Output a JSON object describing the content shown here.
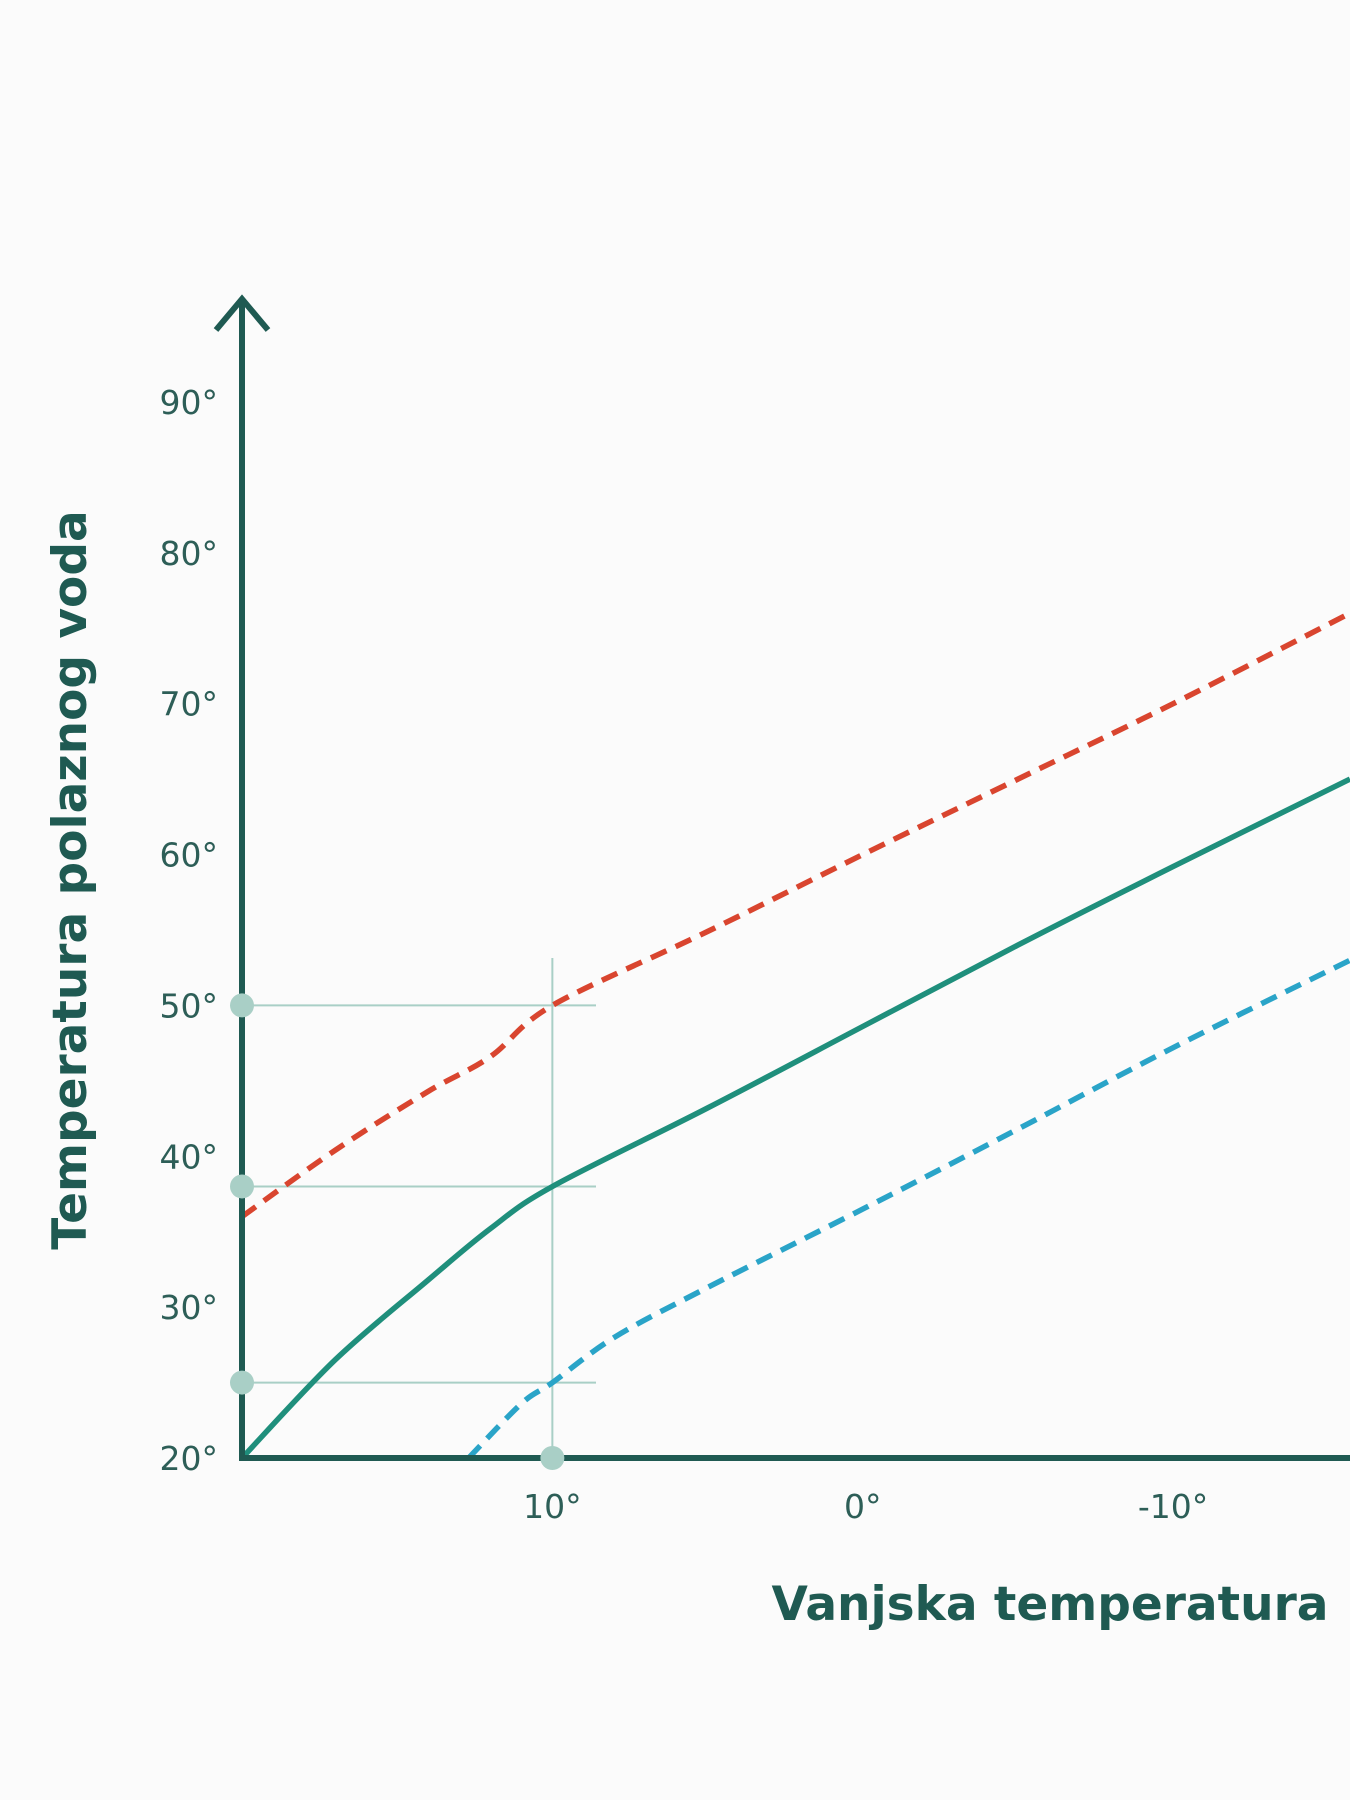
{
  "chart_data": {
    "type": "line",
    "xlabel": "Vanjska temperatura",
    "ylabel": "Temperatura polaznog voda",
    "x_tick_labels": [
      "10°",
      "0°",
      "-10°"
    ],
    "x_ticks": [
      10,
      0,
      -10
    ],
    "y_tick_labels": [
      "20°",
      "30°",
      "40°",
      "50°",
      "60°",
      "70°",
      "80°",
      "90°"
    ],
    "y_ticks": [
      20,
      30,
      40,
      50,
      60,
      70,
      80,
      90
    ],
    "x_axis_reversed": true,
    "xlim": [
      20,
      -15.7
    ],
    "ylim": [
      20,
      90
    ],
    "grid": false,
    "series": [
      {
        "color": "#d9452f",
        "style": "dashed",
        "x": [
          20,
          17,
          14,
          12,
          10,
          5,
          0,
          -5,
          -10,
          -15.7
        ],
        "y": [
          36,
          40.4,
          44.3,
          46.6,
          50,
          54.9,
          60,
          65,
          70,
          76
        ]
      },
      {
        "color": "#1f8f7c",
        "style": "solid",
        "x": [
          20,
          17,
          14,
          12,
          10,
          5,
          0,
          -5,
          -10,
          -15.7
        ],
        "y": [
          20,
          26.5,
          31.8,
          35.2,
          38,
          43.2,
          48.6,
          54,
          59.2,
          65
        ]
      },
      {
        "color": "#2aa4c8",
        "style": "dashed",
        "x": [
          12.7,
          11,
          10,
          8,
          5,
          0,
          -5,
          -10,
          -15.7
        ],
        "y": [
          20,
          23.6,
          25,
          28,
          31.3,
          36.5,
          41.8,
          47.2,
          53
        ]
      }
    ],
    "reference": {
      "x": 10,
      "markers_y": [
        25,
        38,
        50
      ],
      "line_color": "#a9cfc6",
      "marker_color": "#a9cfc6"
    },
    "axis_color": "#1f5a52"
  }
}
